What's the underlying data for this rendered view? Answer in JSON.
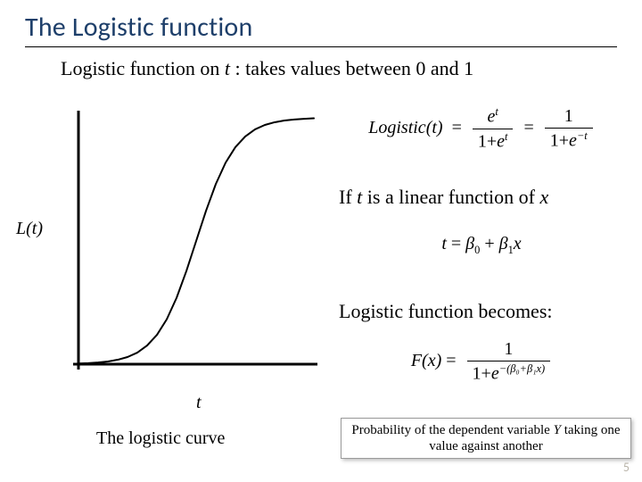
{
  "title": "The Logistic function",
  "subtitle_parts": {
    "a": "Logistic function on ",
    "t": "t",
    "b": " : takes values between 0 and 1"
  },
  "chart": {
    "type": "line",
    "xlim": [
      -6,
      6
    ],
    "ylim": [
      0,
      1
    ],
    "line_color": "#000000",
    "line_width": 2,
    "axis_color": "#000000",
    "axis_width": 3,
    "background_color": "#ffffff",
    "x_label": "t",
    "y_label": "L(t)",
    "caption": "The logistic curve",
    "points": [
      [
        -6,
        0.0025
      ],
      [
        -5.5,
        0.0041
      ],
      [
        -5,
        0.0067
      ],
      [
        -4.5,
        0.011
      ],
      [
        -4,
        0.018
      ],
      [
        -3.5,
        0.029
      ],
      [
        -3,
        0.047
      ],
      [
        -2.5,
        0.076
      ],
      [
        -2,
        0.119
      ],
      [
        -1.5,
        0.182
      ],
      [
        -1,
        0.269
      ],
      [
        -0.5,
        0.378
      ],
      [
        0,
        0.5
      ],
      [
        0.5,
        0.622
      ],
      [
        1,
        0.731
      ],
      [
        1.5,
        0.818
      ],
      [
        2,
        0.881
      ],
      [
        2.5,
        0.924
      ],
      [
        3,
        0.953
      ],
      [
        3.5,
        0.971
      ],
      [
        4,
        0.982
      ],
      [
        4.5,
        0.989
      ],
      [
        5,
        0.993
      ],
      [
        5.5,
        0.996
      ],
      [
        6,
        0.998
      ]
    ]
  },
  "eq_logistic": {
    "lhs": "Logistic(t)",
    "frac1_num_exp": "t",
    "frac1_den_exp": "t",
    "frac2_den_exp": "−t"
  },
  "line_if_parts": {
    "a": "If ",
    "t": "t",
    "b": " is a linear function of ",
    "x": "x"
  },
  "eq_t": {
    "lhs": "t",
    "b0": "β",
    "b0_sub": "0",
    "plus": " + ",
    "b1": "β",
    "b1_sub": "1",
    "x": "x"
  },
  "line_becomes": "Logistic function becomes:",
  "eq_fx": {
    "lhs": "F(x)",
    "exp_inner": "−(β₀+β₁x)"
  },
  "callout_parts": {
    "a": "Probability of the dependent variable ",
    "y": "Y",
    "b": " taking one value against another"
  },
  "page_number": "5",
  "colors": {
    "title_color": "#1e3f6a",
    "text_color": "#000000",
    "page_num_color": "#b9b4a9",
    "callout_border": "#9a9a9a"
  }
}
